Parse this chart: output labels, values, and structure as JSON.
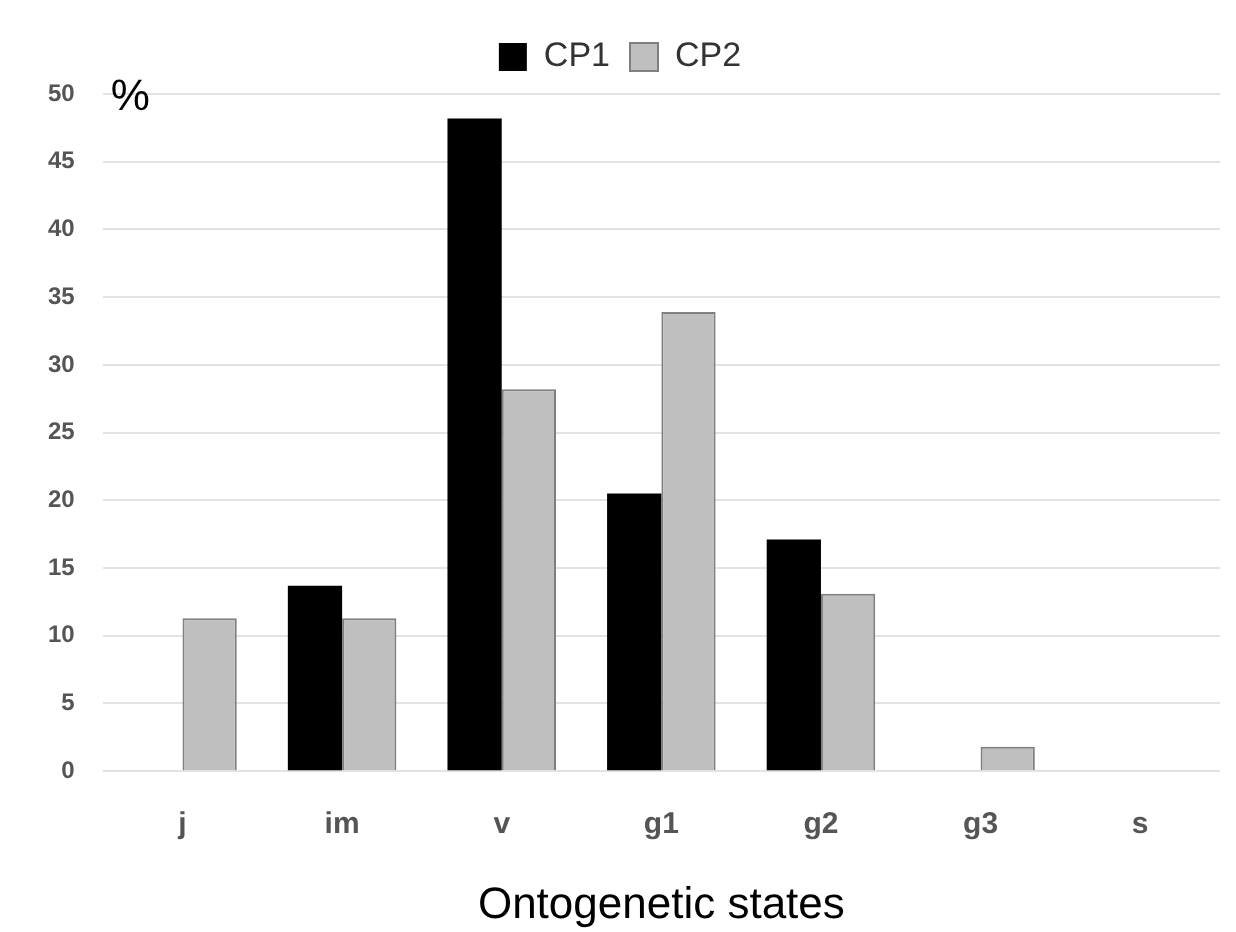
{
  "chart_data": {
    "type": "bar",
    "xlabel": "Ontogenetic states",
    "ylabel": "%",
    "categories": [
      "j",
      "im",
      "v",
      "g1",
      "g2",
      "g3",
      "s"
    ],
    "series": [
      {
        "name": "CP1",
        "color": "#000000",
        "values": [
          0,
          13.7,
          48.2,
          20.5,
          17.1,
          0,
          0
        ]
      },
      {
        "name": "CP2",
        "color": "#bfbfbf",
        "values": [
          11.3,
          11.3,
          28.2,
          33.9,
          13.1,
          1.8,
          0
        ]
      }
    ],
    "ylim": [
      0,
      50
    ],
    "yticks": [
      0,
      5,
      10,
      15,
      20,
      25,
      30,
      35,
      40,
      45,
      50
    ],
    "grid": "y",
    "legend": "top"
  }
}
